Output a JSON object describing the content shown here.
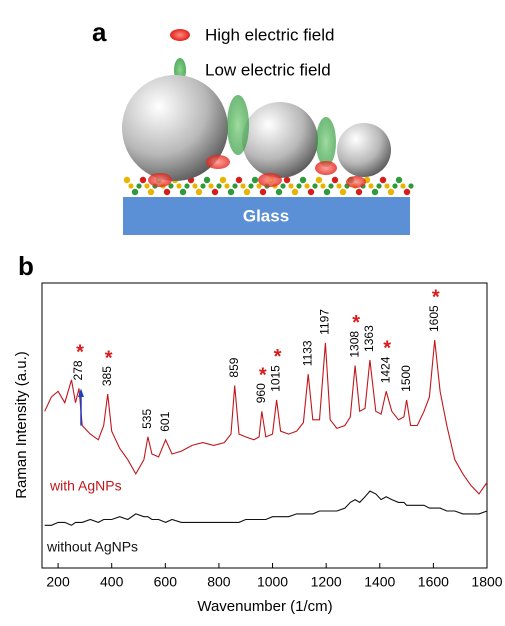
{
  "panel_a": {
    "label": "a",
    "legend": [
      "High electric field",
      "Low electric field"
    ],
    "substrate": "Glass"
  },
  "chart_data": {
    "type": "line",
    "panel_label": "b",
    "x_label": "Wavenumber (1/cm)",
    "y_label": "Raman Intensity (a.u.)",
    "x": [
      150,
      175,
      200,
      225,
      250,
      265,
      278,
      290,
      320,
      350,
      370,
      385,
      400,
      430,
      460,
      490,
      520,
      535,
      550,
      575,
      601,
      625,
      660,
      700,
      740,
      780,
      820,
      845,
      859,
      875,
      900,
      930,
      950,
      960,
      975,
      1000,
      1015,
      1030,
      1060,
      1090,
      1115,
      1133,
      1150,
      1175,
      1197,
      1215,
      1240,
      1270,
      1290,
      1308,
      1325,
      1345,
      1363,
      1385,
      1405,
      1424,
      1445,
      1470,
      1490,
      1500,
      1515,
      1540,
      1565,
      1585,
      1605,
      1625,
      1650,
      1680,
      1710,
      1740,
      1770,
      1800
    ],
    "series": [
      {
        "name": "with AgNPs",
        "color": "#c0171c",
        "values": [
          55,
          60,
          62,
          58,
          66,
          58,
          63,
          50,
          47,
          45,
          50,
          61,
          48,
          42,
          38,
          33,
          38,
          46,
          40,
          39,
          45,
          40,
          41,
          43,
          44,
          43,
          44,
          47,
          64,
          47,
          46,
          45,
          46,
          55,
          46,
          47,
          59,
          48,
          47,
          48,
          51,
          68,
          52,
          52,
          79,
          52,
          49,
          50,
          53,
          71,
          55,
          56,
          73,
          55,
          54,
          62,
          55,
          52,
          53,
          59,
          50,
          50,
          55,
          60,
          80,
          62,
          50,
          38,
          33,
          29,
          26,
          30
        ]
      },
      {
        "name": "without AgNPs",
        "color": "#111111",
        "values": [
          15,
          15,
          16,
          16,
          15,
          16,
          16,
          16,
          17,
          16,
          17,
          17,
          17,
          18,
          17,
          19,
          18,
          18,
          17,
          17,
          16,
          17,
          16,
          16,
          16,
          16,
          16,
          16,
          16,
          16,
          17,
          17,
          17,
          17,
          17,
          18,
          18,
          18,
          18,
          19,
          19,
          19,
          19,
          20,
          20,
          20,
          20,
          21,
          23,
          24,
          23,
          25,
          27,
          26,
          24,
          25,
          24,
          23,
          23,
          22,
          22,
          22,
          22,
          21,
          21,
          21,
          20,
          20,
          19,
          19,
          19,
          20
        ]
      }
    ],
    "peaks": [
      {
        "x": 278,
        "marker": "*"
      },
      {
        "x": 385,
        "marker": "*"
      },
      {
        "x": 535
      },
      {
        "x": 601
      },
      {
        "x": 859
      },
      {
        "x": 960,
        "marker": "*"
      },
      {
        "x": 1015,
        "marker": "*"
      },
      {
        "x": 1133
      },
      {
        "x": 1197
      },
      {
        "x": 1308,
        "marker": "*"
      },
      {
        "x": 1363
      },
      {
        "x": 1424,
        "marker": "*"
      },
      {
        "x": 1500
      },
      {
        "x": 1605,
        "marker": "*"
      }
    ],
    "xlim": [
      140,
      1800
    ],
    "xticks": [
      200,
      400,
      600,
      800,
      1000,
      1200,
      1400,
      1600,
      1800
    ],
    "ylim": [
      0,
      100
    ]
  }
}
